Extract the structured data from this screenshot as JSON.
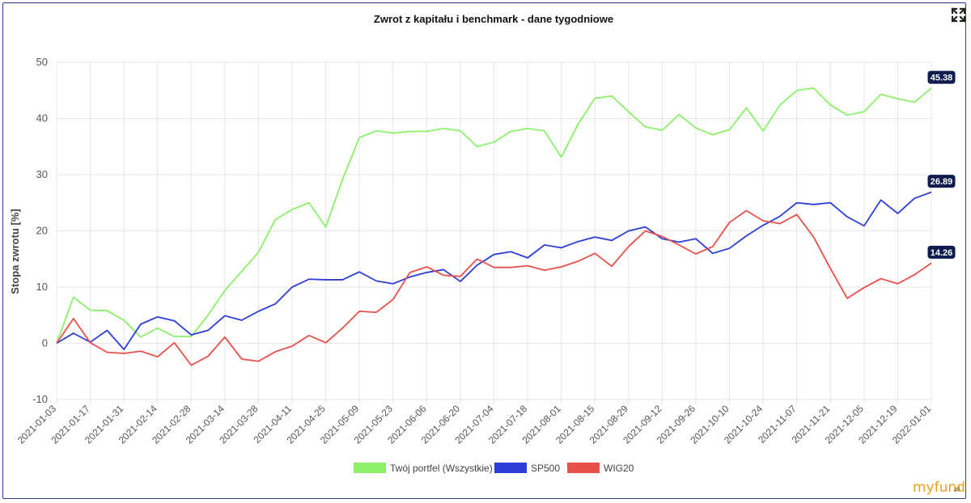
{
  "chart_data": {
    "type": "line",
    "title": "Zwrot z kapitału i benchmark - dane tygodniowe",
    "ylabel": "Stopa zwrotu [%]",
    "xlabel": "",
    "ylim": [
      -10,
      50
    ],
    "yticks": [
      -10,
      0,
      10,
      20,
      30,
      40,
      50
    ],
    "x_tick_labels": [
      "2021-01-03",
      "2021-01-17",
      "2021-01-31",
      "2021-02-14",
      "2021-02-28",
      "2021-03-14",
      "2021-03-28",
      "2021-04-11",
      "2021-04-25",
      "2021-05-09",
      "2021-05-23",
      "2021-06-06",
      "2021-06-20",
      "2021-07-04",
      "2021-07-18",
      "2021-08-01",
      "2021-08-15",
      "2021-08-29",
      "2021-09-12",
      "2021-09-26",
      "2021-10-10",
      "2021-10-24",
      "2021-11-07",
      "2021-11-21",
      "2021-12-05",
      "2021-12-19",
      "2022-01-01"
    ],
    "grid": true,
    "legend_position": "bottom",
    "series": [
      {
        "name": "Twój portfel (Wszystkie)",
        "color": "#8cf06b",
        "end_label": "45.38",
        "values": [
          0,
          8.2,
          5.9,
          5.8,
          4.1,
          1.1,
          2.7,
          1.2,
          1.2,
          5.0,
          9.4,
          12.8,
          16.2,
          22.0,
          23.8,
          25.0,
          20.7,
          29.2,
          36.6,
          37.8,
          37.4,
          37.7,
          37.7,
          38.2,
          37.8,
          35.0,
          35.8,
          37.7,
          38.2,
          37.8,
          33.1,
          39.0,
          43.6,
          44.0,
          41.2,
          38.5,
          37.9,
          40.7,
          38.3,
          37.1,
          38.0,
          41.9,
          37.8,
          42.4,
          45.0,
          45.4,
          42.4,
          40.6,
          41.2,
          44.3,
          43.5,
          42.9,
          45.38
        ]
      },
      {
        "name": "SP500",
        "color": "#2b3ed6",
        "end_label": "26.89",
        "values": [
          0,
          1.8,
          0.2,
          2.3,
          -1.1,
          3.4,
          4.7,
          4.0,
          1.5,
          2.3,
          4.9,
          4.1,
          5.7,
          7.0,
          10.0,
          11.4,
          11.3,
          11.3,
          12.7,
          11.1,
          10.6,
          11.8,
          12.6,
          13.1,
          11.0,
          13.9,
          15.8,
          16.3,
          15.2,
          17.5,
          17.0,
          18.1,
          18.9,
          18.3,
          20.0,
          20.7,
          18.6,
          18.0,
          18.6,
          16.0,
          16.9,
          19.1,
          21.0,
          22.6,
          25.0,
          24.7,
          25.0,
          22.5,
          20.9,
          25.5,
          23.1,
          25.8,
          26.89
        ]
      },
      {
        "name": "WIG20",
        "color": "#e8514a",
        "end_label": "14.26",
        "values": [
          0,
          4.4,
          0.1,
          -1.6,
          -1.8,
          -1.4,
          -2.4,
          0.1,
          -3.9,
          -2.3,
          1.1,
          -2.8,
          -3.2,
          -1.5,
          -0.5,
          1.4,
          0.1,
          2.7,
          5.7,
          5.5,
          7.8,
          12.6,
          13.6,
          12.1,
          11.9,
          15.0,
          13.5,
          13.5,
          13.8,
          13.0,
          13.6,
          14.6,
          16.0,
          13.7,
          17.2,
          20.0,
          19.0,
          17.5,
          15.9,
          17.2,
          21.5,
          23.6,
          21.8,
          21.3,
          22.9,
          18.9,
          13.3,
          8.0,
          9.9,
          11.5,
          10.6,
          12.2,
          14.26
        ]
      }
    ]
  },
  "ui": {
    "brand_main": "myfund",
    "brand_suffix": ".pl",
    "expand_icon": "expand-icon",
    "label_bg_color": "#0d1b4f",
    "grid_color": "#e5e5e5"
  }
}
